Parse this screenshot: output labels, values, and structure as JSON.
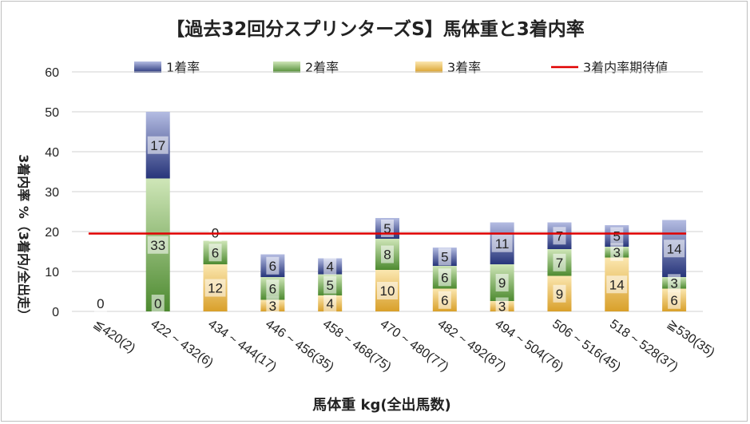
{
  "chart_data": {
    "type": "bar",
    "stacked": true,
    "title": "【過去32回分スプリンターズS】馬体重と3着内率",
    "xlabel": "馬体重 kg(全出馬数)",
    "ylabel": "3着内率 %（3着内/全出走）",
    "ylim": [
      0,
      60
    ],
    "yticks": [
      0,
      10,
      20,
      30,
      40,
      50,
      60
    ],
    "grid": true,
    "legend_position": "top",
    "categories": [
      "≦420(2)",
      "422 ~ 432(6)",
      "434 ~ 444(17)",
      "446 ~ 456(35)",
      "458 ~ 468(75)",
      "470 ~ 480(77)",
      "482 ~ 492(87)",
      "494 ~ 504(76)",
      "506 ~ 516(45)",
      "518 ~ 528(37)",
      "≧530(35)"
    ],
    "series": [
      {
        "name": "3着率",
        "color": "#e6b444",
        "values": [
          0,
          0,
          11.8,
          2.9,
          4.0,
          10.4,
          5.7,
          2.6,
          8.9,
          13.5,
          5.7
        ],
        "labels": [
          "0",
          "0",
          "12",
          "3",
          "4",
          "10",
          "6",
          "3",
          "9",
          "14",
          "6"
        ]
      },
      {
        "name": "2着率",
        "color": "#6aa04a",
        "values": [
          0,
          33.3,
          5.9,
          5.7,
          5.3,
          7.8,
          5.7,
          9.2,
          6.7,
          2.7,
          2.9
        ],
        "labels": [
          "",
          "33",
          "6",
          "6",
          "5",
          "8",
          "6",
          "9",
          "7",
          "3",
          "3"
        ]
      },
      {
        "name": "1着率",
        "color": "#3d4fa0",
        "values": [
          0,
          16.7,
          0,
          5.7,
          4.0,
          5.2,
          4.6,
          10.5,
          6.7,
          5.4,
          14.3
        ],
        "labels": [
          "",
          "17",
          "0",
          "6",
          "4",
          "5",
          "5",
          "11",
          "7",
          "5",
          "14"
        ]
      }
    ],
    "reference_line": {
      "name": "3着内率期待値",
      "color": "#e00000",
      "value": 19.5
    },
    "legend": [
      "1着率",
      "2着率",
      "3着率",
      "3着内率期待値"
    ]
  }
}
